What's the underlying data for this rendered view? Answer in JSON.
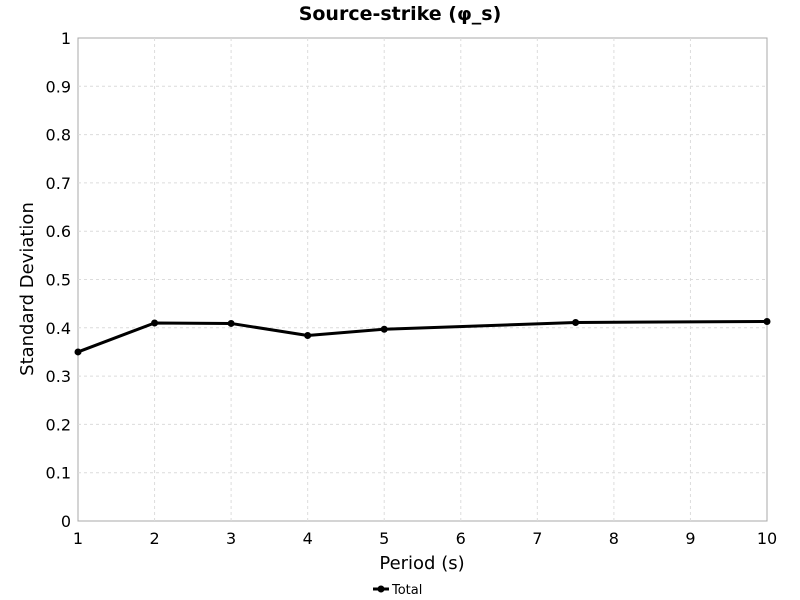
{
  "chart_data": {
    "type": "line",
    "title": "Source-strike (φ_s)",
    "xlabel": "Period (s)",
    "ylabel": "Standard Deviation",
    "xlim": [
      1,
      10
    ],
    "ylim": [
      0,
      1
    ],
    "x_ticks": [
      1,
      2,
      3,
      4,
      5,
      6,
      7,
      8,
      9,
      10
    ],
    "y_ticks": [
      0,
      0.1,
      0.2,
      0.3,
      0.4,
      0.5,
      0.6,
      0.7,
      0.8,
      0.9,
      1
    ],
    "x_tick_labels": [
      "1",
      "2",
      "3",
      "4",
      "5",
      "6",
      "7",
      "8",
      "9",
      "10"
    ],
    "y_tick_labels": [
      "0",
      "0.1",
      "0.2",
      "0.3",
      "0.4",
      "0.5",
      "0.6",
      "0.7",
      "0.8",
      "0.9",
      "1"
    ],
    "grid": true,
    "legend_position": "bottom-center",
    "series": [
      {
        "name": "Total",
        "color": "#000000",
        "marker": "circle",
        "x": [
          1,
          2,
          3,
          4,
          5,
          7.5,
          10
        ],
        "y": [
          0.35,
          0.41,
          0.409,
          0.384,
          0.397,
          0.411,
          0.413
        ]
      }
    ]
  }
}
